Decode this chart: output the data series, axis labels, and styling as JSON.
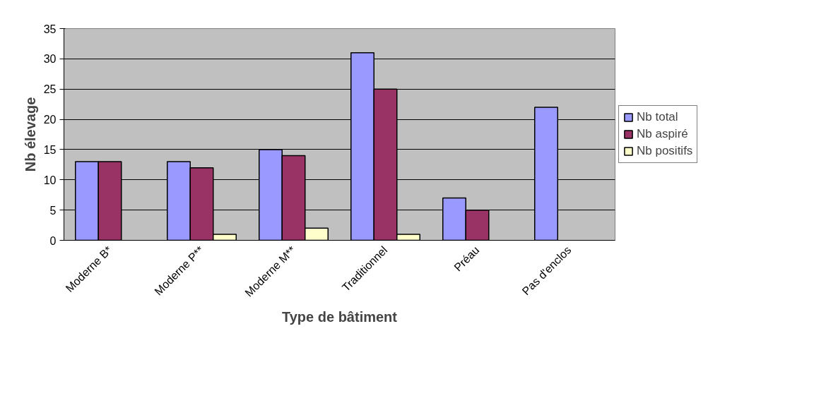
{
  "chart_data": {
    "type": "bar",
    "xlabel": "Type de bâtiment",
    "ylabel": "Nb élevage",
    "categories": [
      "Moderne B*",
      "Moderne P**",
      "Moderne M**",
      "Traditionnel",
      "Préau",
      "Pas d'enclos"
    ],
    "series": [
      {
        "name": "Nb total",
        "color": "#9999ff",
        "values": [
          13,
          13,
          15,
          31,
          7,
          22
        ]
      },
      {
        "name": "Nb aspiré",
        "color": "#993366",
        "values": [
          13,
          12,
          14,
          25,
          5,
          null
        ]
      },
      {
        "name": "Nb positifs",
        "color": "#ffffcc",
        "values": [
          null,
          1,
          2,
          1,
          null,
          null
        ]
      }
    ],
    "ylim": [
      0,
      35
    ],
    "yticks": [
      0,
      5,
      10,
      15,
      20,
      25,
      30,
      35
    ],
    "grid": "y",
    "legend": "right"
  }
}
